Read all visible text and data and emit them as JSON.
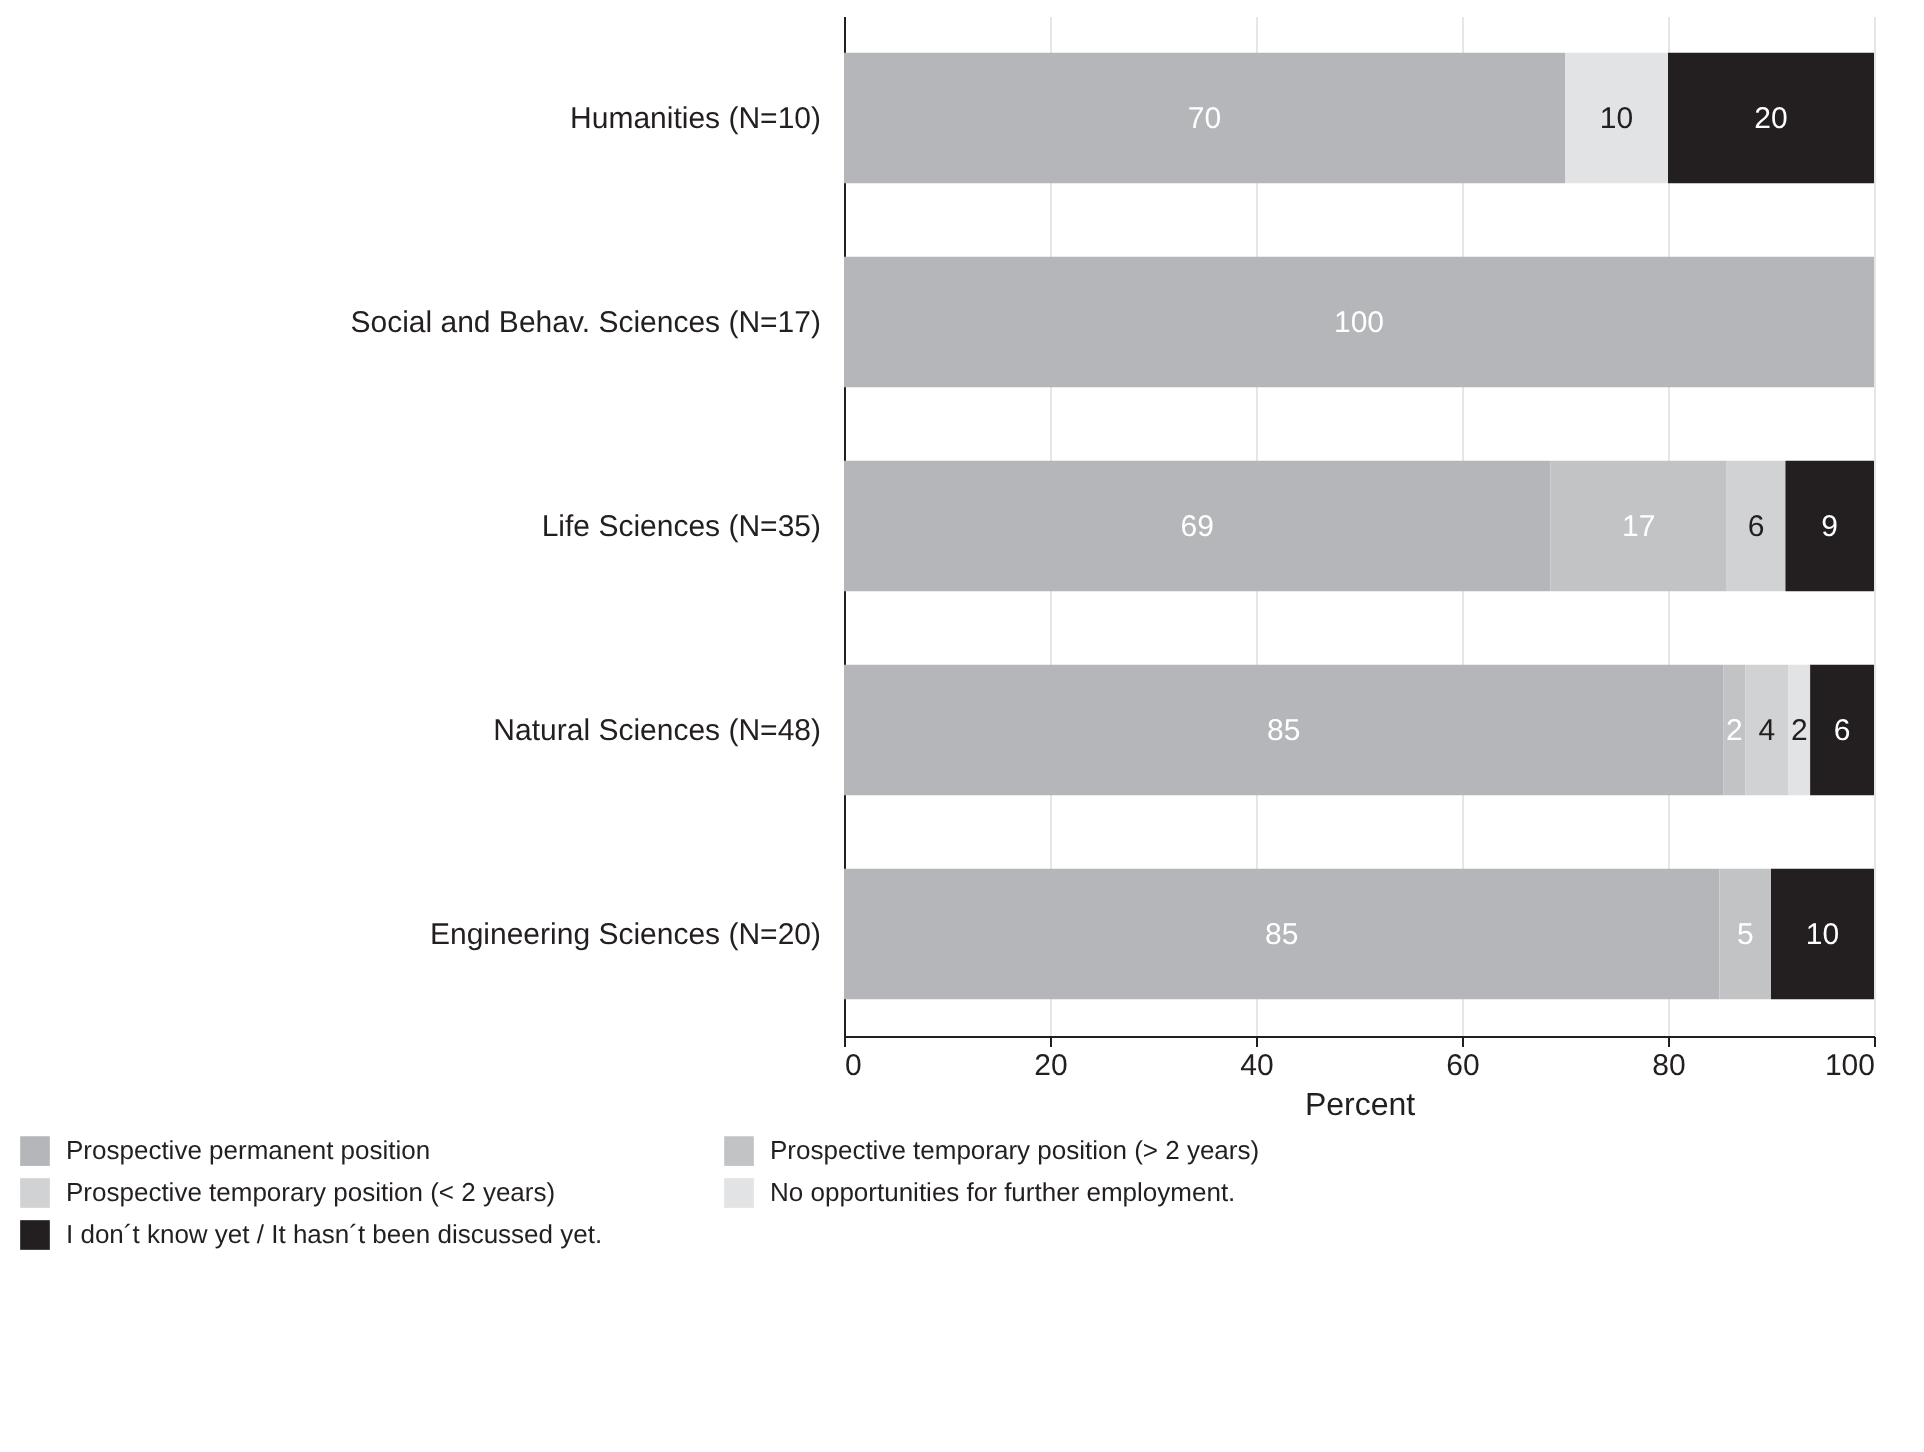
{
  "chart_data": {
    "type": "bar",
    "orientation": "horizontal",
    "stacked": true,
    "xlabel": "Percent",
    "xlim": [
      0,
      100
    ],
    "xticks": [
      0,
      20,
      40,
      60,
      80,
      100
    ],
    "grid": "x",
    "legend": "bottom",
    "categories": [
      "Humanities (N=10)",
      "Social and Behav. Sciences (N=17)",
      "Life Sciences (N=35)",
      "Natural Sciences (N=48)",
      "Engineering Sciences (N=20)"
    ],
    "series": [
      {
        "name": "Prospective permanent position",
        "color": "#b5b6b9",
        "values": [
          70,
          100,
          68.6,
          85.4,
          85
        ],
        "value_labels": [
          "70",
          "100",
          "69",
          "85",
          "85"
        ]
      },
      {
        "name": "Prospective temporary position (> 2 years)",
        "color": "#c2c3c5",
        "values": [
          null,
          null,
          17.1,
          2.1,
          5
        ],
        "value_labels": [
          null,
          null,
          "17",
          "2",
          "5"
        ]
      },
      {
        "name": "Prospective temporary position (< 2 years)",
        "color": "#d1d2d4",
        "values": [
          null,
          null,
          5.7,
          4.2,
          null
        ],
        "value_labels": [
          null,
          null,
          "6",
          "4",
          null
        ]
      },
      {
        "name": "No opportunities for further employment.",
        "color": "#e2e3e4",
        "values": [
          10,
          null,
          null,
          2.1,
          null
        ],
        "value_labels": [
          "10",
          null,
          null,
          "2",
          null
        ]
      },
      {
        "name": "I don´t know yet / It hasn´t been discussed yet.",
        "color": "#231f20",
        "values": [
          20,
          null,
          8.6,
          6.2,
          10
        ],
        "value_labels": [
          "20",
          null,
          "9",
          "6",
          "10"
        ]
      }
    ]
  }
}
